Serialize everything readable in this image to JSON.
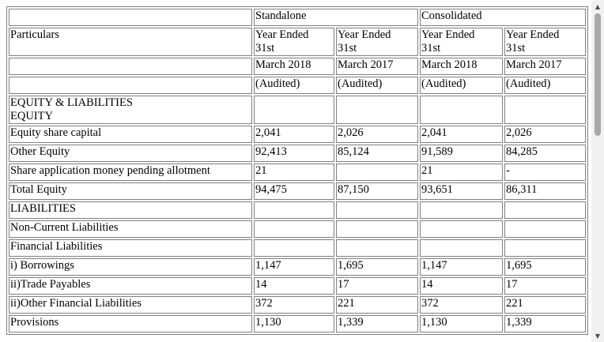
{
  "header": {
    "particulars": "Particulars",
    "standalone": "Standalone",
    "consolidated": "Consolidated",
    "year_ended": "Year Ended",
    "day": "31st",
    "periods": [
      "March 2018",
      "March 2017",
      "March 2018",
      "March 2017"
    ],
    "audited": "(Audited)"
  },
  "rows": [
    {
      "label": [
        "EQUITY & LIABILITIES",
        "EQUITY"
      ],
      "values": [
        "",
        "",
        "",
        ""
      ]
    },
    {
      "label": "Equity share capital",
      "values": [
        "2,041",
        "2,026",
        "2,041",
        "2,026"
      ]
    },
    {
      "label": "Other Equity",
      "values": [
        "92,413",
        "85,124",
        "91,589",
        "84,285"
      ]
    },
    {
      "label": "Share application money pending allotment",
      "values": [
        "21",
        "",
        "21",
        "-"
      ]
    },
    {
      "label": "Total Equity",
      "values": [
        "94,475",
        "87,150",
        "93,651",
        "86,311"
      ]
    },
    {
      "label": "LIABILITIES",
      "values": [
        "",
        "",
        "",
        ""
      ]
    },
    {
      "label": "Non-Current Liabilities",
      "values": [
        "",
        "",
        "",
        ""
      ]
    },
    {
      "label": "Financial Liabilities",
      "values": [
        "",
        "",
        "",
        ""
      ]
    },
    {
      "label": "i) Borrowings",
      "values": [
        "1,147",
        "1,695",
        "1,147",
        "1,695"
      ]
    },
    {
      "label": "ii)Trade Payables",
      "values": [
        "14",
        "17",
        "14",
        "17"
      ]
    },
    {
      "label": "ii)Other Financial Liabilities",
      "values": [
        "372",
        "221",
        "372",
        "221"
      ]
    },
    {
      "label": "Provisions",
      "values": [
        "1,130",
        "1,339",
        "1,130",
        "1,339"
      ]
    }
  ],
  "scrollbar": {
    "up_icon": "up-arrow-icon",
    "down_icon": "down-arrow-icon"
  }
}
